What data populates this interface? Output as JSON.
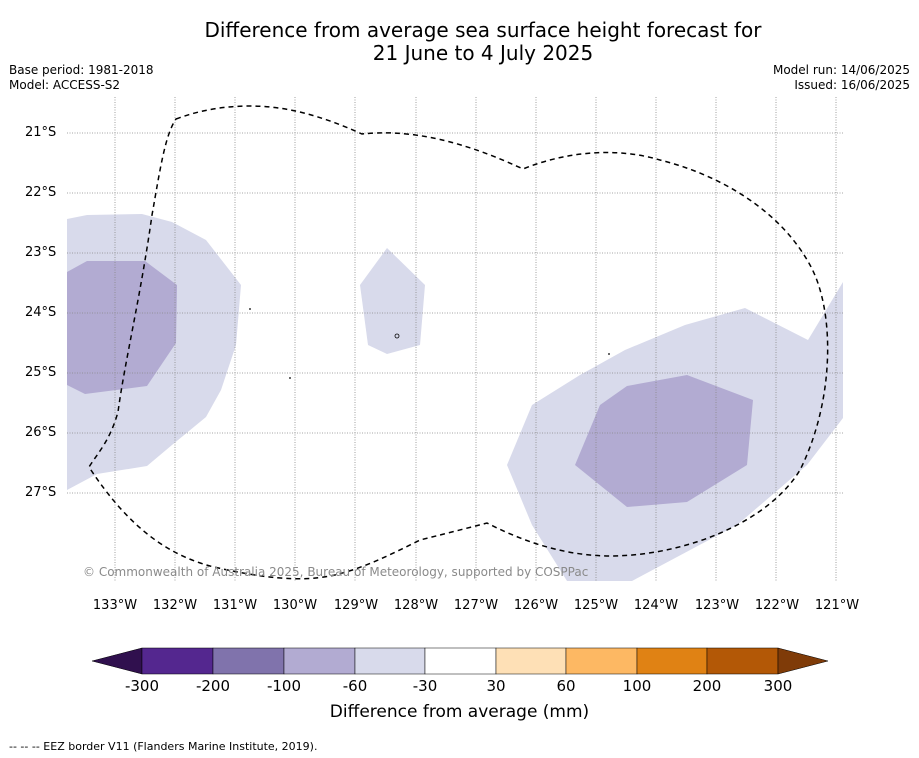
{
  "title_line1": "Difference from average sea surface height forecast for",
  "title_line2": "21 June to 4 July 2025",
  "base_period": "Base period: 1981-2018",
  "model": "Model: ACCESS-S2",
  "model_run": "Model run: 14/06/2025",
  "issued": "Issued: 16/06/2025",
  "lat_labels": [
    "21°S",
    "22°S",
    "23°S",
    "24°S",
    "25°S",
    "26°S",
    "27°S"
  ],
  "lon_labels": [
    "133°W",
    "132°W",
    "131°W",
    "130°W",
    "129°W",
    "128°W",
    "127°W",
    "126°W",
    "125°W",
    "124°W",
    "123°W",
    "122°W",
    "121°W"
  ],
  "copyright": "© Commonwealth of Australia 2025, Bureau of Meteorology, supported by COSPPac",
  "colorbar": {
    "ticks": [
      "-300",
      "-200",
      "-100",
      "-60",
      "-30",
      "30",
      "60",
      "100",
      "200",
      "300"
    ],
    "colors": [
      "#30104e",
      "#54278f",
      "#8073ac",
      "#b2abd2",
      "#d8daeb",
      "#ffffff",
      "#fee0b6",
      "#fdb863",
      "#e08214",
      "#b35806",
      "#7f3b08"
    ],
    "label": "Difference from average (mm)"
  },
  "footnote": "--  --  -- EEZ border V11 (Flanders Marine Institute, 2019)."
}
